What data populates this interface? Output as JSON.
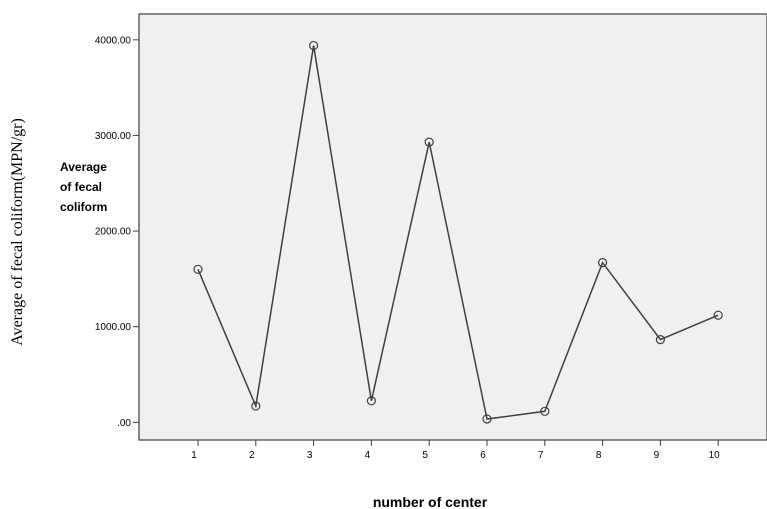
{
  "chart_data": {
    "type": "line",
    "x": [
      1,
      2,
      3,
      4,
      5,
      6,
      7,
      8,
      9,
      10
    ],
    "x_tick_labels": [
      "1",
      "2",
      "3",
      "4",
      "5",
      "6",
      "7",
      "8",
      "9",
      "10"
    ],
    "values": [
      1600,
      170,
      3940,
      225,
      2930,
      35,
      115,
      1670,
      865,
      1120
    ],
    "ylim": [
      -185,
      4270
    ],
    "y_ticks": [
      0,
      1000,
      2000,
      3000,
      4000
    ],
    "y_tick_labels": [
      ".00",
      "1000.00",
      "2000.00",
      "3000.00",
      "4000.00"
    ],
    "ylabel_outer": "Average of fecal coliform(MPN/gr)",
    "ylabel_inner_lines": [
      "Average",
      "of fecal",
      "coliform"
    ],
    "xlabel": "number of center",
    "grid": false,
    "colors": {
      "plot_background": "#f0f0f0",
      "line": "#404040",
      "marker": "#404040",
      "axis": "#404040"
    }
  }
}
